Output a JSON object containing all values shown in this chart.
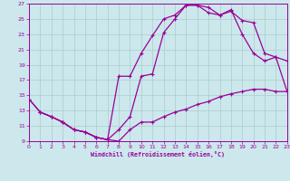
{
  "xlabel": "Windchill (Refroidissement éolien,°C)",
  "xlim": [
    0,
    23
  ],
  "ylim": [
    9,
    27
  ],
  "xticks": [
    0,
    1,
    2,
    3,
    4,
    5,
    6,
    7,
    8,
    9,
    10,
    11,
    12,
    13,
    14,
    15,
    16,
    17,
    18,
    19,
    20,
    21,
    22,
    23
  ],
  "yticks": [
    9,
    11,
    13,
    15,
    17,
    19,
    21,
    23,
    25,
    27
  ],
  "bg_color": "#cce8ec",
  "line_color": "#990099",
  "grid_color": "#aacccc",
  "curve1_x": [
    0,
    1,
    2,
    3,
    4,
    5,
    6,
    7,
    8,
    9,
    10,
    11,
    12,
    13,
    14,
    15,
    16,
    17,
    18,
    19,
    20,
    21,
    22,
    23
  ],
  "curve1_y": [
    14.5,
    12.8,
    12.2,
    11.5,
    10.5,
    10.2,
    9.5,
    9.2,
    17.5,
    17.5,
    20.5,
    22.8,
    25.0,
    25.5,
    26.8,
    26.8,
    26.5,
    25.5,
    26.0,
    24.8,
    24.5,
    20.5,
    20.0,
    19.5
  ],
  "curve2_x": [
    0,
    1,
    2,
    3,
    4,
    5,
    6,
    7,
    8,
    9,
    10,
    11,
    12,
    13,
    14,
    15,
    16,
    17,
    18,
    19,
    20,
    21,
    22,
    23
  ],
  "curve2_y": [
    14.5,
    12.8,
    12.2,
    11.5,
    10.5,
    10.2,
    9.5,
    9.2,
    10.5,
    12.2,
    17.5,
    17.8,
    23.2,
    25.0,
    26.8,
    26.8,
    25.8,
    25.5,
    26.2,
    23.0,
    20.5,
    19.5,
    20.0,
    15.5
  ],
  "curve3_x": [
    1,
    2,
    3,
    4,
    5,
    6,
    7,
    8,
    9,
    10,
    11,
    12,
    13,
    14,
    15,
    16,
    17,
    18,
    19,
    20,
    21,
    22,
    23
  ],
  "curve3_y": [
    12.8,
    12.2,
    11.5,
    10.5,
    10.2,
    9.5,
    9.2,
    9.0,
    10.5,
    11.5,
    11.5,
    12.2,
    12.8,
    13.2,
    13.8,
    14.2,
    14.8,
    15.2,
    15.5,
    15.8,
    15.8,
    15.5,
    15.5
  ],
  "marker": "+",
  "markersize": 3.5,
  "linewidth": 0.9
}
